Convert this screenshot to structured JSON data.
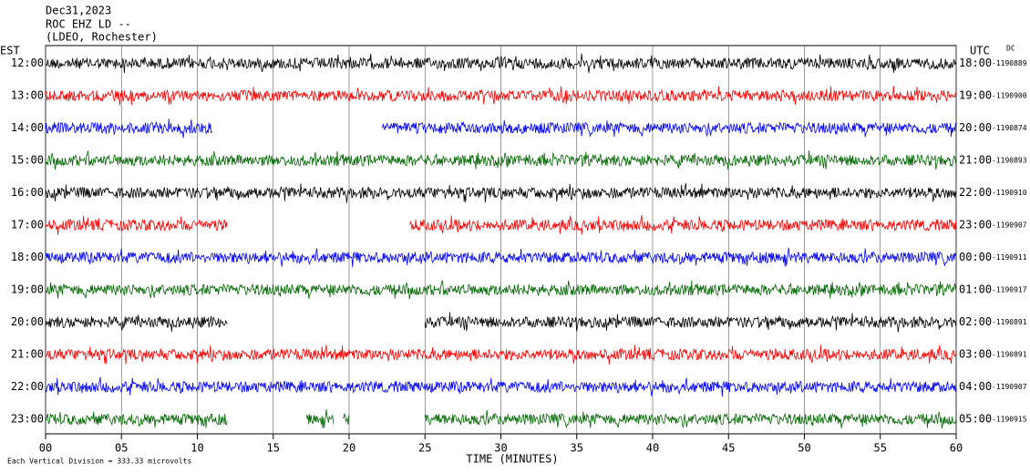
{
  "chart_data": {
    "type": "helicorder",
    "header": [
      "Dec31,2023",
      "ROC EHZ LD --",
      "(LDEO, Rochester)"
    ],
    "left_label": "EST",
    "right_label": "UTC",
    "dc_label": "DC",
    "xlabel": "TIME (MINUTES)",
    "note": "Each Vertical Division =  333.33 microvolts",
    "xlim": [
      0,
      60
    ],
    "xticks": [
      {
        "value": 0,
        "label": "00"
      },
      {
        "value": 5,
        "label": "05"
      },
      10,
      15,
      20,
      25,
      30,
      35,
      40,
      45,
      50,
      55,
      60
    ],
    "rows": [
      {
        "est": "12:00",
        "utc": "18:00",
        "dc": -1190889,
        "color": "#000000",
        "segments": [
          [
            0,
            60
          ]
        ]
      },
      {
        "est": "13:00",
        "utc": "19:00",
        "dc": -1190900,
        "color": "#ff0000",
        "segments": [
          [
            0,
            60
          ]
        ]
      },
      {
        "est": "14:00",
        "utc": "20:00",
        "dc": -1190874,
        "color": "#0000ff",
        "segments": [
          [
            0,
            11
          ],
          [
            22.2,
            60
          ]
        ]
      },
      {
        "est": "15:00",
        "utc": "21:00",
        "dc": -1190893,
        "color": "#006600",
        "segments": [
          [
            0,
            60
          ]
        ]
      },
      {
        "est": "16:00",
        "utc": "22:00",
        "dc": -1190910,
        "color": "#000000",
        "segments": [
          [
            0,
            60
          ]
        ]
      },
      {
        "est": "17:00",
        "utc": "23:00",
        "dc": -1190907,
        "color": "#ff0000",
        "segments": [
          [
            0,
            12
          ],
          [
            24,
            60
          ]
        ]
      },
      {
        "est": "18:00",
        "utc": "00:00",
        "dc": -1190911,
        "color": "#0000ff",
        "segments": [
          [
            0,
            60
          ]
        ]
      },
      {
        "est": "19:00",
        "utc": "01:00",
        "dc": -1190917,
        "color": "#006600",
        "segments": [
          [
            0,
            60
          ]
        ]
      },
      {
        "est": "20:00",
        "utc": "02:00",
        "dc": -1190891,
        "color": "#000000",
        "segments": [
          [
            0,
            12
          ],
          [
            25,
            60
          ]
        ]
      },
      {
        "est": "21:00",
        "utc": "03:00",
        "dc": -1190891,
        "color": "#ff0000",
        "segments": [
          [
            0,
            60
          ]
        ]
      },
      {
        "est": "22:00",
        "utc": "04:00",
        "dc": -1190907,
        "color": "#0000ff",
        "segments": [
          [
            0,
            60
          ]
        ]
      },
      {
        "est": "23:00",
        "utc": "05:00",
        "dc": -1190915,
        "color": "#006600",
        "segments": [
          [
            0,
            12
          ],
          [
            17.2,
            19
          ],
          [
            19.6,
            20
          ],
          [
            25,
            60
          ]
        ]
      }
    ]
  }
}
